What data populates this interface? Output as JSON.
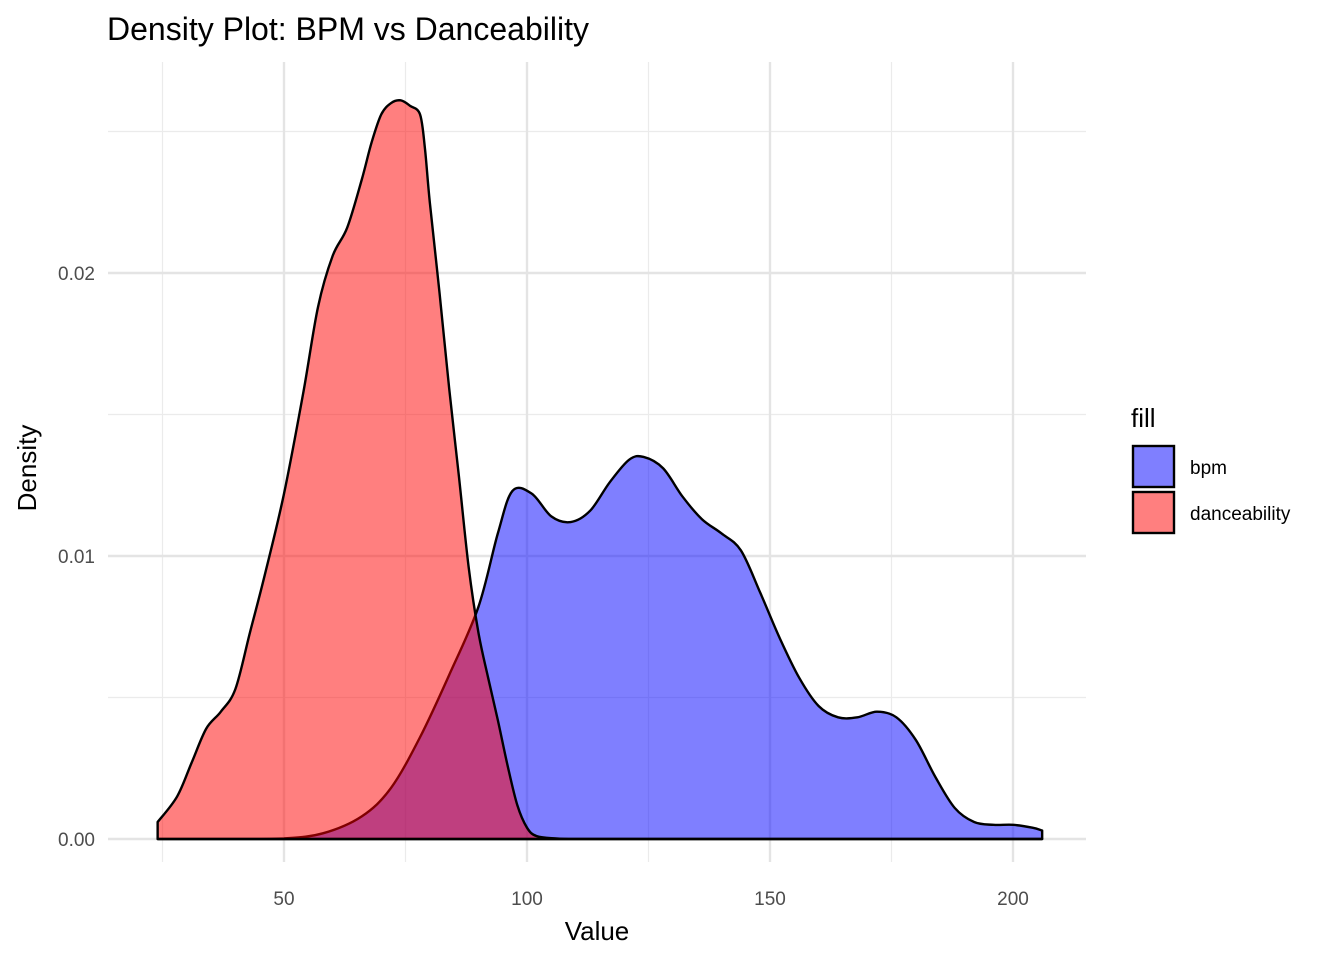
{
  "chart_data": {
    "type": "area",
    "title": "Density Plot: BPM vs Danceability",
    "xlabel": "Value",
    "ylabel": "Density",
    "xlim": [
      24,
      206
    ],
    "ylim": [
      0,
      0.0262
    ],
    "x_ticks": [
      50,
      100,
      150,
      200
    ],
    "x_tick_labels": [
      "50",
      "100",
      "150",
      "200"
    ],
    "y_ticks": [
      0,
      0.01,
      0.02
    ],
    "y_tick_labels": [
      "0.00",
      "0.01",
      "0.02"
    ],
    "grid": true,
    "legend": {
      "title": "fill",
      "placement": "right"
    },
    "series": [
      {
        "name": "bpm",
        "color": "#0000ff",
        "opacity": 0.5,
        "x": [
          24,
          40,
          50,
          58,
          66,
          72,
          78,
          84,
          90,
          94,
          97,
          101,
          105,
          109,
          113,
          117,
          121,
          124,
          128,
          132,
          136,
          140,
          144,
          148,
          152,
          156,
          160,
          164,
          168,
          172,
          176,
          180,
          184,
          188,
          192,
          196,
          200,
          204,
          206
        ],
        "y": [
          0.0,
          0.0,
          2e-05,
          0.0002,
          0.0008,
          0.0018,
          0.0036,
          0.0058,
          0.0082,
          0.0108,
          0.0123,
          0.0122,
          0.0114,
          0.0112,
          0.0116,
          0.0126,
          0.0134,
          0.0135,
          0.0131,
          0.0121,
          0.0113,
          0.0108,
          0.0102,
          0.0087,
          0.0071,
          0.0057,
          0.0047,
          0.0043,
          0.0043,
          0.0045,
          0.0043,
          0.0035,
          0.0022,
          0.0011,
          0.0006,
          0.0005,
          0.0005,
          0.0004,
          0.0003
        ]
      },
      {
        "name": "danceability",
        "color": "#ff0000",
        "opacity": 0.5,
        "x": [
          24,
          28,
          31,
          34,
          37,
          40,
          43,
          46,
          50,
          54,
          57,
          60,
          63,
          66,
          68,
          70,
          72,
          74,
          76,
          78,
          79,
          80,
          82,
          84,
          86,
          88,
          90,
          92,
          94,
          96,
          98,
          100,
          102,
          106,
          110,
          120,
          206
        ],
        "y": [
          0.0006,
          0.0015,
          0.0027,
          0.0039,
          0.0045,
          0.0053,
          0.0073,
          0.0093,
          0.0122,
          0.0158,
          0.0188,
          0.0206,
          0.0216,
          0.0233,
          0.0246,
          0.0256,
          0.026,
          0.0261,
          0.0259,
          0.0256,
          0.0244,
          0.0225,
          0.0193,
          0.0159,
          0.0128,
          0.0096,
          0.0073,
          0.0057,
          0.0042,
          0.0026,
          0.0012,
          0.0004,
          0.0001,
          2e-05,
          0.0,
          0.0,
          0.0
        ]
      }
    ]
  }
}
